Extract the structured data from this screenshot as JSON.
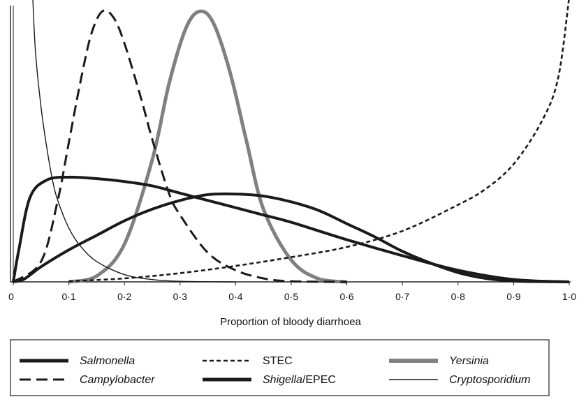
{
  "chart_data": {
    "type": "line",
    "xlabel": "Proportion of bloody diarrhoea",
    "ylabel": "",
    "xlim": [
      0,
      1
    ],
    "ylim": [
      0,
      9.5
    ],
    "x_ticks": [
      "0",
      "0·1",
      "0·2",
      "0·3",
      "0·4",
      "0·5",
      "0·6",
      "0·7",
      "0·8",
      "0·9",
      "1·0"
    ],
    "legend_position": "bottom",
    "series": [
      {
        "name": "Salmonella",
        "italic": true,
        "style": "thick-solid",
        "color": "#1a1a1a",
        "x": [
          0,
          0.02,
          0.05,
          0.1,
          0.15,
          0.2,
          0.25,
          0.3,
          0.35,
          0.4,
          0.45,
          0.5,
          0.55,
          0.6,
          0.65,
          0.7,
          0.75,
          0.8,
          0.85,
          0.9,
          0.95,
          1.0
        ],
        "y": [
          0,
          0.1,
          0.52,
          1.1,
          1.6,
          2.1,
          2.5,
          2.8,
          3.0,
          3.02,
          2.95,
          2.75,
          2.45,
          2.0,
          1.55,
          1.05,
          0.65,
          0.32,
          0.12,
          0.03,
          0.01,
          0
        ]
      },
      {
        "name": "STEC",
        "italic": false,
        "style": "dotted",
        "color": "#1a1a1a",
        "x": [
          0.1,
          0.2,
          0.3,
          0.4,
          0.5,
          0.6,
          0.7,
          0.8,
          0.85,
          0.9,
          0.95,
          0.98,
          1.0
        ],
        "y": [
          0.02,
          0.12,
          0.3,
          0.55,
          0.85,
          1.2,
          1.75,
          2.65,
          3.2,
          4.05,
          5.5,
          7.0,
          9.8
        ]
      },
      {
        "name": "Yersinia",
        "italic": true,
        "style": "thick-grey",
        "color": "#808080",
        "x": [
          0.1,
          0.15,
          0.2,
          0.25,
          0.28,
          0.31,
          0.335,
          0.36,
          0.39,
          0.42,
          0.45,
          0.5,
          0.55,
          0.6
        ],
        "y": [
          0,
          0.2,
          1.3,
          4.2,
          6.8,
          8.7,
          9.3,
          8.9,
          7.2,
          4.8,
          2.5,
          0.75,
          0.1,
          0
        ]
      },
      {
        "name": "Campylobacter",
        "italic": true,
        "style": "dashed",
        "color": "#1a1a1a",
        "x": [
          0,
          0.05,
          0.08,
          0.1,
          0.12,
          0.14,
          0.16,
          0.18,
          0.2,
          0.23,
          0.25,
          0.28,
          0.3,
          0.35,
          0.4,
          0.45,
          0.5,
          0.6
        ],
        "y": [
          0,
          0.7,
          2.8,
          4.8,
          6.8,
          8.5,
          9.3,
          9.1,
          8.2,
          6.3,
          4.9,
          3.05,
          2.3,
          1.0,
          0.4,
          0.12,
          0.02,
          0
        ]
      },
      {
        "name": "Shigella/EPEC",
        "italic_part": "Shigella",
        "plain_part": "/EPEC",
        "style": "thick-solid",
        "color": "#1a1a1a",
        "x": [
          0,
          0.01,
          0.03,
          0.06,
          0.1,
          0.15,
          0.2,
          0.25,
          0.3,
          0.35,
          0.4,
          0.45,
          0.5,
          0.6,
          0.7,
          0.8,
          0.9,
          1.0
        ],
        "y": [
          0,
          1.1,
          2.9,
          3.5,
          3.6,
          3.55,
          3.45,
          3.3,
          3.05,
          2.8,
          2.55,
          2.3,
          2.05,
          1.45,
          0.9,
          0.4,
          0.08,
          0
        ]
      },
      {
        "name": "Cryptosporidium",
        "italic": true,
        "style": "thin-solid",
        "color": "#1a1a1a",
        "x": [
          0.035,
          0.04,
          0.05,
          0.06,
          0.07,
          0.08,
          0.1,
          0.12,
          0.15,
          0.2,
          0.25,
          0.3,
          0.4
        ],
        "y": [
          9.8,
          7.9,
          6.0,
          4.65,
          3.55,
          2.8,
          1.85,
          1.25,
          0.7,
          0.25,
          0.08,
          0.02,
          0
        ]
      }
    ]
  }
}
